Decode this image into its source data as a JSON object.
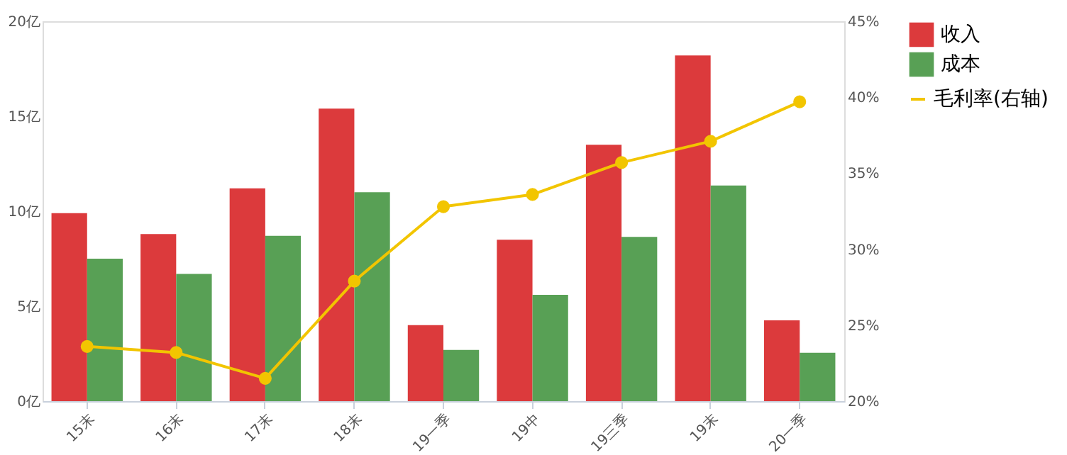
{
  "chart_data": {
    "type": "bar",
    "categories": [
      "15末",
      "16末",
      "17末",
      "18末",
      "19一季",
      "19中",
      "19三季",
      "19末",
      "20一季"
    ],
    "series": [
      {
        "name": "收入",
        "color": "#dc3a3c",
        "values": [
          9.9,
          8.8,
          11.2,
          15.4,
          4.0,
          8.5,
          13.5,
          18.2,
          4.25
        ]
      },
      {
        "name": "成本",
        "color": "#58a055",
        "values": [
          7.5,
          6.7,
          8.7,
          11.0,
          2.7,
          5.6,
          8.65,
          11.35,
          2.55
        ]
      },
      {
        "name": "毛利率(右轴)",
        "type": "line",
        "axis": "y2",
        "color": "#f2c500",
        "marker": "circle",
        "values": [
          23.6,
          23.2,
          21.5,
          27.9,
          32.8,
          33.6,
          35.7,
          37.1,
          39.7
        ]
      }
    ],
    "ylim": [
      0,
      20
    ],
    "yticks": [
      {
        "value": 0,
        "label": "0亿"
      },
      {
        "value": 5,
        "label": "5亿"
      },
      {
        "value": 10,
        "label": "10亿"
      },
      {
        "value": 15,
        "label": "15亿"
      },
      {
        "value": 20,
        "label": "20亿"
      }
    ],
    "y2lim": [
      20,
      45
    ],
    "y2ticks": [
      {
        "value": 20,
        "label": "20%"
      },
      {
        "value": 25,
        "label": "25%"
      },
      {
        "value": 30,
        "label": "30%"
      },
      {
        "value": 35,
        "label": "35%"
      },
      {
        "value": 40,
        "label": "40%"
      },
      {
        "value": 45,
        "label": "45%"
      }
    ],
    "grid": false,
    "legend": "right"
  }
}
